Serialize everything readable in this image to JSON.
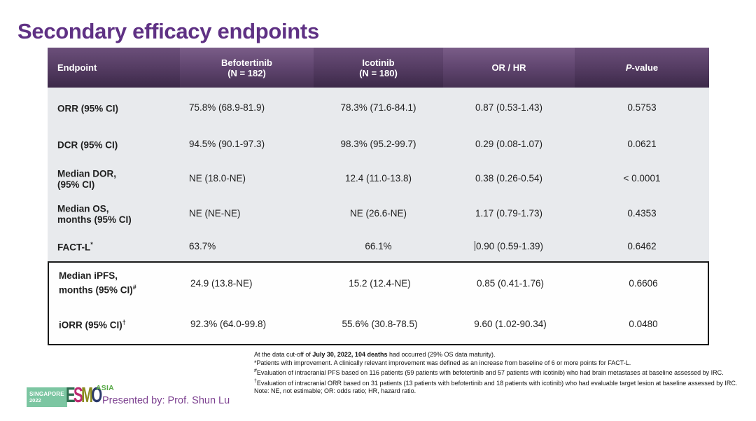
{
  "title": "Secondary efficacy endpoints",
  "table": {
    "header": {
      "endpoint": "Endpoint",
      "bef_line1": "Befotertinib",
      "bef_line2": "(N = 182)",
      "ico_line1": "Icotinib",
      "ico_line2": "(N = 180)",
      "orhr": "OR / HR",
      "p_italic": "P",
      "p_rest": "-value"
    },
    "rows": [
      {
        "label1": "ORR (95% CI)",
        "label2": "",
        "sup": "",
        "bef": "75.8% (68.9-81.9)",
        "ico": "78.3% (71.6-84.1)",
        "orhr": "0.87 (0.53-1.43)",
        "p": "0.5753"
      },
      {
        "label1": "DCR (95% CI)",
        "label2": "",
        "sup": "",
        "bef": "94.5% (90.1-97.3)",
        "ico": "98.3% (95.2-99.7)",
        "orhr": "0.29 (0.08-1.07)",
        "p": "0.0621"
      },
      {
        "label1": "Median DOR,",
        "label2": "(95% CI)",
        "sup": "",
        "bef": "NE (18.0-NE)",
        "ico": "12.4 (11.0-13.8)",
        "orhr": "0.38 (0.26-0.54)",
        "p": "< 0.0001"
      },
      {
        "label1": "Median OS,",
        "label2": "months (95% CI)",
        "sup": "",
        "bef": "NE (NE-NE)",
        "ico": "NE (26.6-NE)",
        "orhr": "1.17 (0.79-1.73)",
        "p": "0.4353"
      },
      {
        "label1": "FACT-L",
        "label2": "",
        "sup": "*",
        "bef": "63.7%",
        "ico": "66.1%",
        "orhr": "0.90 (0.59-1.39)",
        "p": "0.6462"
      },
      {
        "label1": "Median iPFS,",
        "label2": "months (95% CI)",
        "sup": "#",
        "bef": "24.9 (13.8-NE)",
        "ico": "15.2 (12.4-NE)",
        "orhr": "0.85 (0.41-1.76)",
        "p": "0.6606"
      },
      {
        "label1": "iORR (95% CI)",
        "label2": "",
        "sup": "†",
        "bef": "92.3% (64.0-99.8)",
        "ico": "55.6% (30.8-78.5)",
        "orhr": "9.60 (1.02-90.34)",
        "p": "0.0480"
      }
    ]
  },
  "footnotes": {
    "line1_pre": "At the data cut-off of ",
    "line1_bold": "July 30, 2022, 104 deaths",
    "line1_post": " had occurred (29% OS data maturity).",
    "line2_sup": "*",
    "line2": "Patients with improvement. A clinically relevant improvement was defined as an increase from baseline of 6 or more points for FACT-L.",
    "line3_sup": "#",
    "line3": "Evaluation of intracranial PFS based on 116 patients (59 patients with befotertinib and 57 patients with icotinib) who had brain metastases at baseline assessed by IRC.",
    "line4_sup": "†",
    "line4": "Evaluation of intracranial ORR based on 31 patients (13 patients with befotertinib and 18 patients with icotinib) who had evaluable target lesion at baseline assessed by IRC.",
    "line5": "Note: NE, not estimable; OR: odds ratio; HR, hazard ratio."
  },
  "footer": {
    "badge_line1": "SINGAPORE",
    "badge_line2": "2022",
    "esmo_letters": [
      "E",
      "S",
      "M",
      "O"
    ],
    "asia": "ASIA",
    "presented_by": "Presented by: Prof. Shun Lu"
  },
  "colors": {
    "title_purple": "#5f3184",
    "header_dark": "#563d64",
    "header_light": "#614670",
    "body_gray": "#e8eaed",
    "box_border": "#1a1a1a",
    "badge_green": "#7cc6a2",
    "esmo_e": "#2e6b4f",
    "esmo_s": "#bb2a70",
    "esmo_m": "#8a8a1e",
    "esmo_o": "#2b3a6b",
    "asia_green": "#57a846",
    "presented_purple": "#7b3f8f"
  }
}
